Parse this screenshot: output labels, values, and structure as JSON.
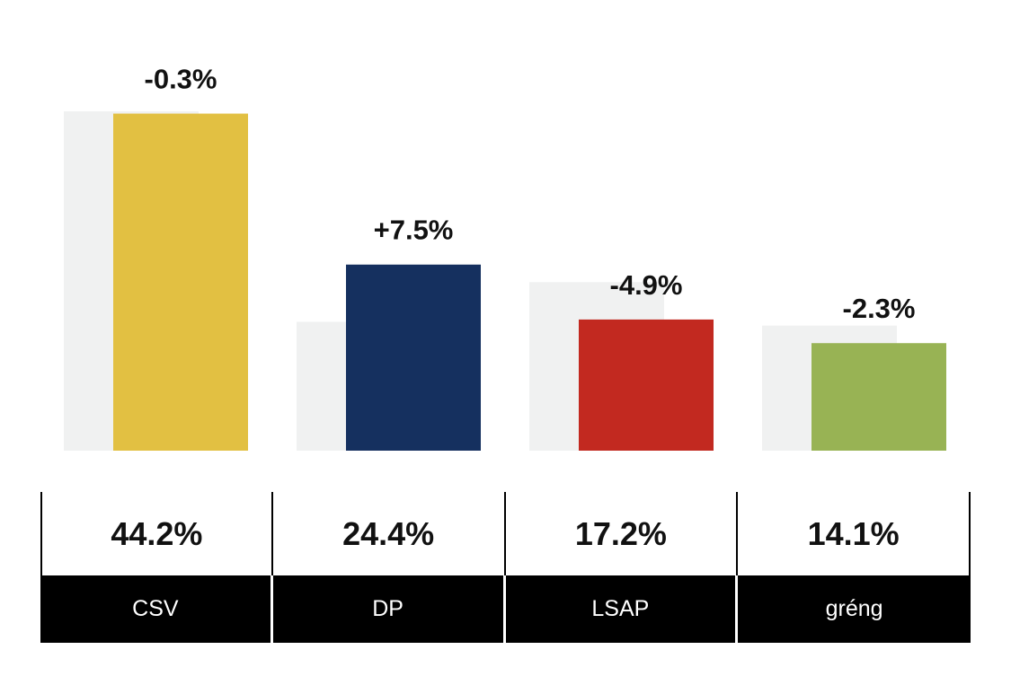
{
  "chart_data": {
    "type": "bar",
    "categories": [
      "CSV",
      "DP",
      "LSAP",
      "gréng"
    ],
    "series": [
      {
        "values": [
          44.5,
          16.9,
          22.1,
          16.4
        ]
      },
      {
        "values": [
          44.2,
          24.4,
          17.2,
          14.1
        ]
      }
    ],
    "changes": [
      "-0.3%",
      "+7.5%",
      "-4.9%",
      "-2.3%"
    ],
    "value_labels": [
      "44.2%",
      "24.4%",
      "17.2%",
      "14.1%"
    ],
    "colors": {
      "previous": "#f0f1f1",
      "bars": [
        "#e2c042",
        "#15305f",
        "#c22920",
        "#98b354"
      ]
    },
    "ylim": [
      0,
      44.5
    ],
    "grid": false,
    "legend": "none"
  }
}
